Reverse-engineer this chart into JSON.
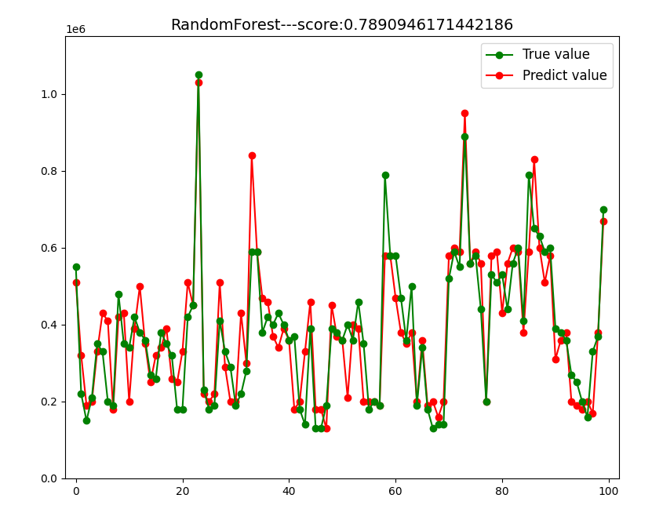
{
  "title": "RandomForest---score:0.7890946171442186",
  "true_values": [
    550000,
    220000,
    150000,
    210000,
    350000,
    330000,
    200000,
    190000,
    480000,
    350000,
    340000,
    420000,
    380000,
    360000,
    270000,
    260000,
    380000,
    350000,
    320000,
    180000,
    180000,
    420000,
    450000,
    1050000,
    230000,
    180000,
    190000,
    410000,
    330000,
    290000,
    190000,
    220000,
    280000,
    590000,
    590000,
    380000,
    420000,
    400000,
    430000,
    400000,
    360000,
    370000,
    180000,
    140000,
    390000,
    130000,
    130000,
    190000,
    390000,
    380000,
    360000,
    400000,
    360000,
    460000,
    350000,
    180000,
    200000,
    190000,
    790000,
    580000,
    580000,
    470000,
    360000,
    500000,
    190000,
    340000,
    180000,
    130000,
    140000,
    140000,
    520000,
    590000,
    550000,
    890000,
    560000,
    580000,
    440000,
    200000,
    530000,
    510000,
    530000,
    440000,
    560000,
    600000,
    410000,
    790000,
    650000,
    630000,
    590000,
    600000,
    390000,
    380000,
    360000,
    270000,
    250000,
    200000,
    160000,
    330000,
    370000,
    700000
  ],
  "predict_values": [
    510000,
    320000,
    190000,
    200000,
    330000,
    430000,
    410000,
    180000,
    420000,
    430000,
    200000,
    390000,
    500000,
    350000,
    250000,
    320000,
    340000,
    390000,
    260000,
    250000,
    330000,
    510000,
    450000,
    1030000,
    220000,
    200000,
    220000,
    510000,
    290000,
    200000,
    200000,
    430000,
    300000,
    840000,
    590000,
    470000,
    460000,
    370000,
    340000,
    390000,
    360000,
    180000,
    200000,
    330000,
    460000,
    180000,
    180000,
    130000,
    450000,
    370000,
    360000,
    210000,
    400000,
    390000,
    200000,
    200000,
    200000,
    190000,
    580000,
    580000,
    470000,
    380000,
    350000,
    380000,
    200000,
    360000,
    190000,
    200000,
    160000,
    200000,
    580000,
    600000,
    590000,
    950000,
    560000,
    590000,
    560000,
    200000,
    580000,
    590000,
    430000,
    560000,
    600000,
    590000,
    380000,
    590000,
    830000,
    600000,
    510000,
    580000,
    310000,
    360000,
    380000,
    200000,
    190000,
    180000,
    200000,
    170000,
    380000,
    670000
  ],
  "true_color": "#008000",
  "predict_color": "#ff0000",
  "marker": "o",
  "linewidth": 1.5,
  "markersize": 6,
  "legend_loc": "upper right",
  "legend_fontsize": 12,
  "title_fontsize": 14,
  "figsize": [
    8.31,
    6.63
  ],
  "dpi": 100,
  "xlim": [
    -2,
    102
  ],
  "ylim": [
    0,
    1150000.0
  ],
  "yticks": [
    0.0,
    0.2,
    0.4,
    0.6,
    0.8,
    1.0
  ],
  "xticks": [
    0,
    20,
    40,
    60,
    80,
    100
  ]
}
